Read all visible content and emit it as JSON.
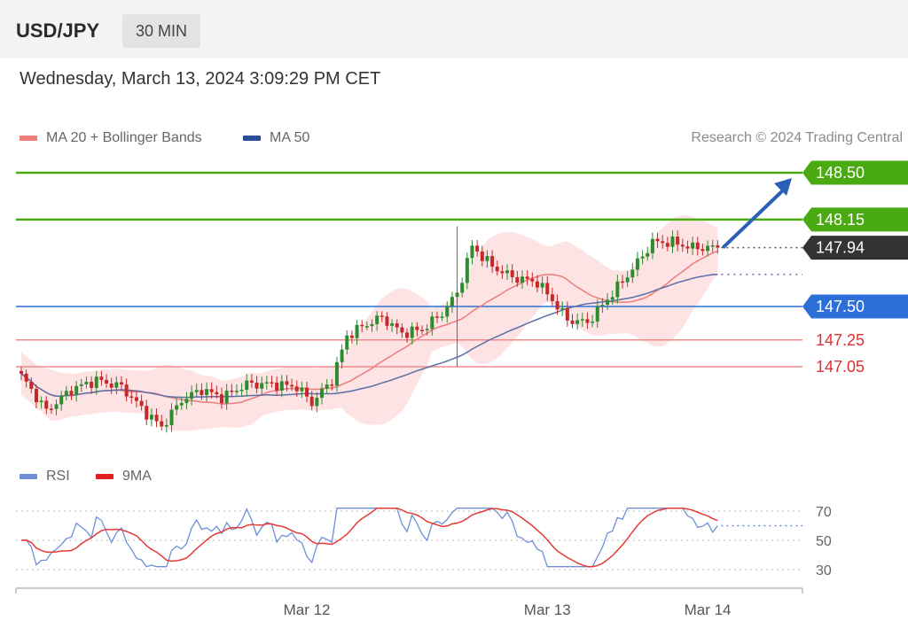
{
  "header": {
    "symbol": "USD/JPY",
    "timeframe": "30 MIN"
  },
  "datetime": "Wednesday, March 13, 2024 3:09:29 PM CET",
  "legend": {
    "ma20": "MA 20 + Bollinger Bands",
    "ma50": "MA 50",
    "credit": "Research © 2024 Trading Central"
  },
  "rsi_legend": {
    "rsi": "RSI",
    "ma9": "9MA"
  },
  "colors": {
    "green": "#4aaa12",
    "blue": "#2d6fd8",
    "red": "#e03030",
    "dark": "#333333",
    "ma20": "#f07b7b",
    "ma50": "#5b6fa8",
    "band": "#fde0e0",
    "candle_up": "#2e8b2e",
    "candle_down": "#c62828",
    "rsi_line": "#6d8fd8"
  },
  "chart_data": [
    {
      "type": "candlestick",
      "title": "USD/JPY",
      "ylim": [
        146.55,
        148.7
      ],
      "x_ticks": [
        {
          "label": "Mar 12",
          "index": 57
        },
        {
          "label": "Mar 13",
          "index": 105
        },
        {
          "label": "Mar 14",
          "index": 137
        }
      ],
      "levels": [
        {
          "value": 148.5,
          "label": "148.50",
          "kind": "resistance",
          "color": "#4aaa12",
          "tag": "filled"
        },
        {
          "value": 148.15,
          "label": "148.15",
          "kind": "resistance",
          "color": "#4aaa12",
          "tag": "filled"
        },
        {
          "value": 147.94,
          "label": "147.94",
          "kind": "last",
          "color": "#333333",
          "tag": "filled"
        },
        {
          "value": 147.5,
          "label": "147.50",
          "kind": "pivot",
          "color": "#2d6fd8",
          "tag": "filled"
        },
        {
          "value": 147.25,
          "label": "147.25",
          "kind": "support",
          "color": "#e03030",
          "tag": "text"
        },
        {
          "value": 147.05,
          "label": "147.05",
          "kind": "support",
          "color": "#e03030",
          "tag": "text"
        }
      ],
      "target_arrow": {
        "from": 147.94,
        "to": 148.5
      },
      "series_names": [
        "MA 20 + Bollinger Bands",
        "MA 50"
      ]
    },
    {
      "type": "line",
      "title": "",
      "series_names": [
        "RSI",
        "9MA"
      ],
      "ylim": [
        20,
        80
      ],
      "y_ticks": [
        "70",
        "50",
        "30"
      ],
      "last_rsi": 60
    }
  ]
}
